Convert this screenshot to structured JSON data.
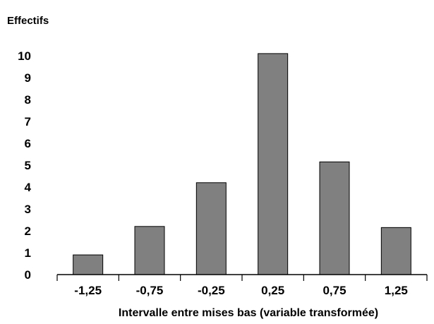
{
  "chart_data": {
    "type": "bar",
    "title": "",
    "ylabel": "Effectifs",
    "xlabel": "Intervalle entre mises bas (variable transformée)",
    "categories": [
      "-1,25",
      "-0,75",
      "-0,25",
      "0,25",
      "0,75",
      "1,25"
    ],
    "values": [
      0.9,
      2.2,
      4.2,
      10.1,
      5.15,
      2.15
    ],
    "ylim": [
      0,
      10
    ],
    "yticks": [
      "0",
      "1",
      "2",
      "3",
      "4",
      "5",
      "6",
      "7",
      "8",
      "9",
      "10"
    ],
    "grid": false,
    "legend": "none",
    "bar_color": "#808080",
    "bar_edge_color": "#000000"
  }
}
